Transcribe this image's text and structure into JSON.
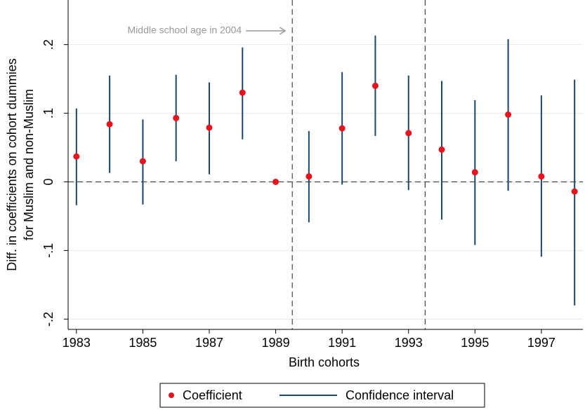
{
  "chart_data": {
    "type": "coefplot",
    "x_label": "Birth cohorts",
    "y_label": [
      "Diff. in coefficients on cohort dummies",
      "for Muslim and non-Muslim"
    ],
    "annotation": "Middle school age in 2004",
    "x": [
      1983,
      1984,
      1985,
      1986,
      1987,
      1988,
      1989,
      1990,
      1991,
      1992,
      1993,
      1994,
      1995,
      1996,
      1997,
      1998
    ],
    "series": [
      {
        "name": "Coefficient",
        "color": "#e8141d",
        "values": [
          0.037,
          0.084,
          0.03,
          0.093,
          0.079,
          0.13,
          0,
          0.008,
          0.078,
          0.14,
          0.071,
          0.047,
          0.014,
          0.098,
          0.008,
          -0.014
        ]
      },
      {
        "name": "Confidence interval",
        "color": "#1a476f",
        "lower": [
          -0.034,
          0.013,
          -0.033,
          0.03,
          0.011,
          0.062,
          null,
          -0.059,
          -0.004,
          0.067,
          -0.012,
          -0.055,
          -0.092,
          -0.013,
          -0.109,
          -0.18
        ],
        "upper": [
          0.107,
          0.155,
          0.091,
          0.156,
          0.145,
          0.196,
          null,
          0.074,
          0.16,
          0.213,
          0.155,
          0.147,
          0.119,
          0.208,
          0.126,
          0.149
        ]
      }
    ],
    "xlim": [
      1982.75,
      1998.25
    ],
    "xticks": [
      1983,
      1985,
      1987,
      1989,
      1991,
      1993,
      1995,
      1997
    ],
    "ylim": [
      -0.215,
      0.265
    ],
    "yticks": [
      {
        "value": -0.2,
        "label": "-.2"
      },
      {
        "value": -0.1,
        "label": "-.1"
      },
      0,
      {
        "value": 0.1,
        "label": ".1"
      },
      {
        "value": 0.2,
        "label": ".2"
      }
    ],
    "grid": true,
    "reference_line_y": 0,
    "vlines": [
      1989.5,
      1993.5
    ]
  }
}
